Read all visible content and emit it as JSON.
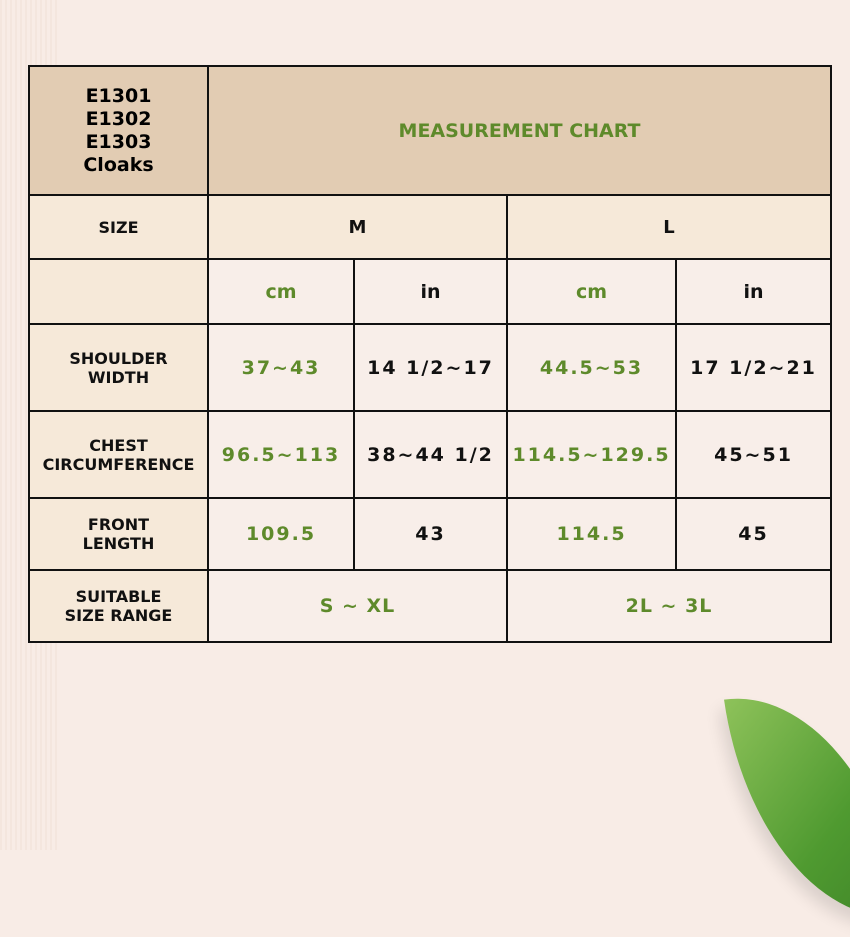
{
  "product": {
    "codes": [
      "E1301",
      "E1302",
      "E1303"
    ],
    "name": "Cloaks"
  },
  "title": "MEASUREMENT CHART",
  "size_label": "SIZE",
  "sizes": [
    "M",
    "L"
  ],
  "units": [
    "cm",
    "in",
    "cm",
    "in"
  ],
  "rows": [
    {
      "label": [
        "SHOULDER",
        "WIDTH"
      ],
      "values": [
        "37~43",
        "14 1/2~17",
        "44.5~53",
        "17 1/2~21"
      ]
    },
    {
      "label": [
        "CHEST",
        "CIRCUMFERENCE"
      ],
      "values": [
        "96.5~113",
        "38~44 1/2",
        "114.5~129.5",
        "45~51"
      ]
    },
    {
      "label": [
        "FRONT",
        "LENGTH"
      ],
      "values": [
        "109.5",
        "43",
        "114.5",
        "45"
      ]
    }
  ],
  "range": {
    "label": [
      "SUITABLE",
      "SIZE RANGE"
    ],
    "values": [
      "S ~ XL",
      "2L ~ 3L"
    ]
  },
  "colors": {
    "accent_green": "#5e8a2b",
    "header_bg": "#e2ccb3",
    "label_bg": "#f6e9d9",
    "cell_bg": "#f8eee9"
  }
}
